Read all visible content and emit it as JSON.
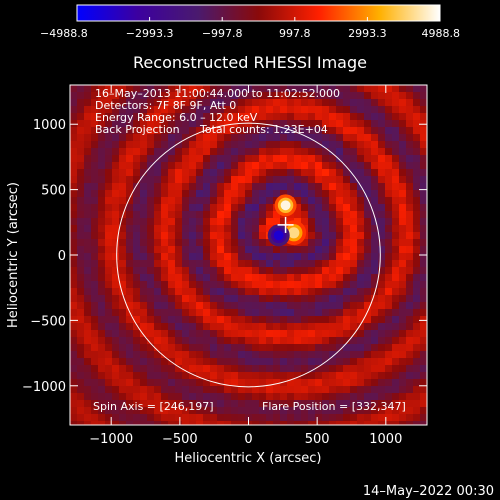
{
  "chart_data": {
    "type": "heatmap",
    "title": "Reconstructed RHESSI Image",
    "xlabel": "Heliocentric X (arcsec)",
    "ylabel": "Heliocentric Y (arcsec)",
    "xlim": [
      -1300,
      1300
    ],
    "ylim": [
      -1300,
      1300
    ],
    "x_ticks": [
      -1000,
      -500,
      0,
      500,
      1000
    ],
    "x_tick_labels": [
      "−1000",
      "−500",
      "0",
      "500",
      "1000"
    ],
    "y_ticks": [
      -1000,
      -500,
      0,
      500,
      1000
    ],
    "y_tick_labels": [
      "−1000",
      "−500",
      "0",
      "500",
      "1000"
    ],
    "colorbar": {
      "min": -4988.8,
      "max": 4988.8,
      "ticks": [
        -4988.8,
        -2993.3,
        -997.8,
        997.8,
        2993.3,
        4988.8
      ],
      "tick_labels": [
        "−4988.8",
        "−2993.3",
        "−997.8",
        "997.8",
        "2993.3",
        "4988.8"
      ],
      "colors": [
        "#0000ff",
        "#3c00a0",
        "#4a1a6e",
        "#8a0a0a",
        "#ff2000",
        "#ffb000",
        "#ffffff"
      ]
    },
    "solar_disk": {
      "center": [
        0,
        0
      ],
      "radius": 960
    },
    "sources": [
      {
        "x": 270,
        "y": 380,
        "value": 4800,
        "width": 40
      },
      {
        "x": 330,
        "y": 170,
        "value": 4200,
        "width": 45
      },
      {
        "x": 220,
        "y": 150,
        "value": -4200,
        "width": 40
      }
    ],
    "flare_marker": [
      270,
      230
    ],
    "annotations": {
      "date_range": "16–May–2013 11:00:44.000 to 11:02:52.000",
      "detectors": "Detectors: 7F 8F 9F, Att 0",
      "energy_range": "Energy Range: 6.0 – 12.0 keV",
      "back_projection": "Back Projection",
      "total_counts": "Total counts: 1.23E+04",
      "spin_axis": "Spin Axis = [246,197]",
      "flare_position": "Flare Position = [332,347]"
    },
    "footer_date": "14–May–2022 00:30"
  }
}
